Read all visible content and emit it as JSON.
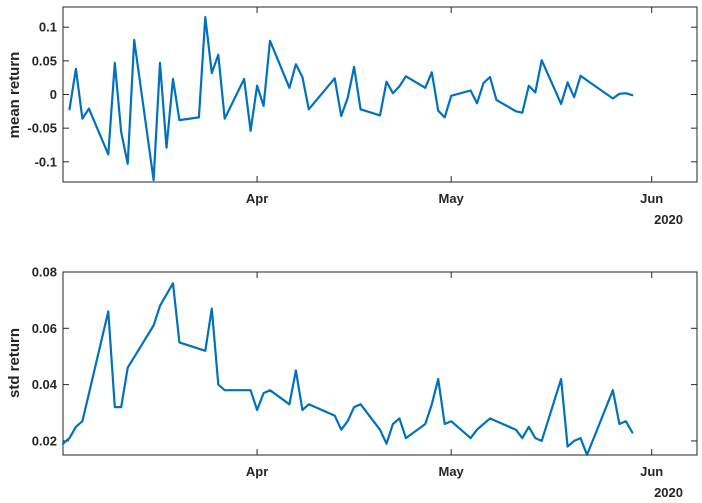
{
  "colors": {
    "line": "#0072BD",
    "axis": "#262626",
    "background": "#ffffff"
  },
  "chart_data": [
    {
      "type": "line",
      "title": "",
      "xlabel": "",
      "ylabel": "mean return",
      "xlim": [
        "2020-03-02",
        "2020-06-08"
      ],
      "ylim": [
        -0.13,
        0.13
      ],
      "yticks": [
        -0.1,
        -0.05,
        0,
        0.05,
        0.1
      ],
      "ytick_labels": [
        "-0.1",
        "-0.05",
        "0",
        "0.05",
        "0.1"
      ],
      "xticks": [
        "2020-04-01",
        "2020-05-01",
        "2020-06-01"
      ],
      "xtick_labels": [
        "Apr",
        "May",
        "Jun"
      ],
      "x_secondary_label": "2020",
      "grid": false,
      "series": [
        {
          "x": [
            "2020-03-03",
            "2020-03-04",
            "2020-03-05",
            "2020-03-06",
            "2020-03-09",
            "2020-03-10",
            "2020-03-11",
            "2020-03-12",
            "2020-03-13",
            "2020-03-16",
            "2020-03-17",
            "2020-03-18",
            "2020-03-19",
            "2020-03-20",
            "2020-03-23",
            "2020-03-24",
            "2020-03-25",
            "2020-03-26",
            "2020-03-27",
            "2020-03-30",
            "2020-03-31",
            "2020-04-01",
            "2020-04-02",
            "2020-04-03",
            "2020-04-06",
            "2020-04-07",
            "2020-04-08",
            "2020-04-09",
            "2020-04-13",
            "2020-04-14",
            "2020-04-15",
            "2020-04-16",
            "2020-04-17",
            "2020-04-20",
            "2020-04-21",
            "2020-04-22",
            "2020-04-23",
            "2020-04-24",
            "2020-04-27",
            "2020-04-28",
            "2020-04-29",
            "2020-04-30",
            "2020-05-01",
            "2020-05-04",
            "2020-05-05",
            "2020-05-06",
            "2020-05-07",
            "2020-05-08",
            "2020-05-11",
            "2020-05-12",
            "2020-05-13",
            "2020-05-14",
            "2020-05-15",
            "2020-05-18",
            "2020-05-19",
            "2020-05-20",
            "2020-05-21",
            "2020-05-22",
            "2020-05-26",
            "2020-05-27",
            "2020-05-28",
            "2020-05-29"
          ],
          "values": [
            -0.022,
            0.038,
            -0.036,
            -0.021,
            -0.089,
            0.047,
            -0.056,
            -0.103,
            0.081,
            -0.127,
            0.047,
            -0.079,
            0.023,
            -0.038,
            -0.034,
            0.115,
            0.032,
            0.059,
            -0.036,
            0.023,
            -0.054,
            0.013,
            -0.017,
            0.08,
            0.01,
            0.045,
            0.026,
            -0.022,
            0.024,
            -0.032,
            -0.005,
            0.041,
            -0.022,
            -0.031,
            0.019,
            0.002,
            0.012,
            0.027,
            0.01,
            0.033,
            -0.024,
            -0.034,
            -0.002,
            0.006,
            -0.013,
            0.017,
            0.026,
            -0.008,
            -0.025,
            -0.027,
            0.013,
            0.003,
            0.051,
            -0.014,
            0.018,
            -0.004,
            0.028,
            0.021,
            -0.006,
            0.001,
            0.002,
            -0.001
          ]
        }
      ]
    },
    {
      "type": "line",
      "title": "",
      "xlabel": "",
      "ylabel": "std return",
      "xlim": [
        "2020-03-02",
        "2020-06-08"
      ],
      "ylim": [
        0.015,
        0.08
      ],
      "yticks": [
        0.02,
        0.04,
        0.06,
        0.08
      ],
      "ytick_labels": [
        "0.02",
        "0.04",
        "0.06",
        "0.08"
      ],
      "xticks": [
        "2020-04-01",
        "2020-05-01",
        "2020-06-01"
      ],
      "xtick_labels": [
        "Apr",
        "May",
        "Jun"
      ],
      "x_secondary_label": "2020",
      "grid": false,
      "series": [
        {
          "x": [
            "2020-03-02",
            "2020-03-03",
            "2020-03-04",
            "2020-03-05",
            "2020-03-09",
            "2020-03-10",
            "2020-03-11",
            "2020-03-12",
            "2020-03-16",
            "2020-03-17",
            "2020-03-18",
            "2020-03-19",
            "2020-03-20",
            "2020-03-24",
            "2020-03-25",
            "2020-03-26",
            "2020-03-27",
            "2020-03-31",
            "2020-04-01",
            "2020-04-02",
            "2020-04-03",
            "2020-04-06",
            "2020-04-07",
            "2020-04-08",
            "2020-04-09",
            "2020-04-13",
            "2020-04-14",
            "2020-04-15",
            "2020-04-16",
            "2020-04-17",
            "2020-04-20",
            "2020-04-21",
            "2020-04-22",
            "2020-04-23",
            "2020-04-24",
            "2020-04-27",
            "2020-04-28",
            "2020-04-29",
            "2020-04-30",
            "2020-05-01",
            "2020-05-04",
            "2020-05-05",
            "2020-05-06",
            "2020-05-07",
            "2020-05-08",
            "2020-05-11",
            "2020-05-12",
            "2020-05-13",
            "2020-05-14",
            "2020-05-15",
            "2020-05-18",
            "2020-05-19",
            "2020-05-20",
            "2020-05-21",
            "2020-05-22",
            "2020-05-26",
            "2020-05-27",
            "2020-05-28",
            "2020-05-29"
          ],
          "values": [
            0.019,
            0.021,
            0.025,
            0.027,
            0.066,
            0.032,
            0.032,
            0.046,
            0.061,
            0.068,
            0.072,
            0.076,
            0.055,
            0.052,
            0.067,
            0.04,
            0.038,
            0.038,
            0.031,
            0.037,
            0.038,
            0.033,
            0.045,
            0.031,
            0.033,
            0.029,
            0.024,
            0.027,
            0.032,
            0.033,
            0.024,
            0.019,
            0.026,
            0.028,
            0.021,
            0.026,
            0.033,
            0.042,
            0.026,
            0.027,
            0.021,
            0.024,
            0.026,
            0.028,
            0.027,
            0.024,
            0.021,
            0.025,
            0.021,
            0.02,
            0.042,
            0.018,
            0.02,
            0.021,
            0.015,
            0.038,
            0.026,
            0.027,
            0.023
          ]
        }
      ]
    }
  ]
}
